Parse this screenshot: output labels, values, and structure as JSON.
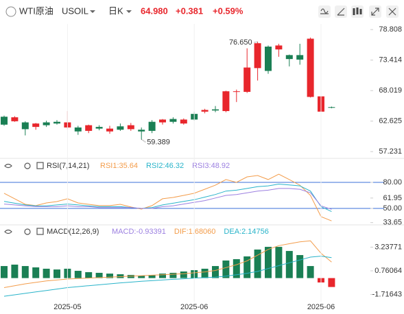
{
  "header": {
    "symbol": "WTI原油",
    "code": "USOIL",
    "period": "日K",
    "price": "64.980",
    "change": "+0.381",
    "change_pct": "+0.59%"
  },
  "chart_data": [
    {
      "type": "candlestick",
      "categories": [
        null,
        null,
        null,
        null,
        null,
        null,
        null,
        null,
        null,
        null,
        null,
        null,
        null,
        null,
        null,
        null,
        null,
        null,
        null,
        null,
        null,
        null,
        null,
        null,
        null,
        null,
        null,
        null,
        null,
        null,
        null,
        null
      ],
      "open": [
        63.4,
        62.6,
        62.4,
        61.6,
        62.4,
        62.5,
        61.5,
        61.5,
        60.9,
        61.6,
        60.8,
        61.7,
        61.2,
        61.1,
        62.5,
        62.4,
        63.0,
        62.2,
        63.9,
        64.3,
        64.7,
        64.4,
        67.8,
        67.8,
        72.0,
        75.8,
        75.3,
        74.3,
        74.3,
        66.9,
        64.3,
        65.1
      ],
      "high": [
        63.6,
        63.5,
        62.6,
        62.3,
        62.7,
        62.8,
        64.4,
        61.8,
        62.0,
        61.9,
        61.8,
        62.2,
        62.3,
        61.5,
        62.8,
        63.0,
        63.3,
        63.1,
        64.3,
        64.8,
        65.3,
        68.0,
        68.2,
        75.5,
        76.65,
        76.0,
        76.3,
        74.4,
        76.3,
        77.4,
        67.2,
        65.2
      ],
      "low": [
        61.8,
        62.5,
        60.1,
        61.1,
        61.6,
        62.0,
        61.2,
        60.2,
        60.5,
        61.0,
        60.4,
        60.9,
        60.9,
        59.389,
        60.5,
        62.0,
        62.2,
        62.0,
        62.7,
        64.0,
        64.2,
        64.2,
        66.0,
        67.6,
        69.8,
        71.0,
        74.0,
        72.3,
        72.6,
        66.8,
        63.5,
        64.9
      ],
      "close": [
        62.0,
        63.3,
        61.2,
        62.2,
        61.9,
        62.2,
        62.4,
        60.8,
        61.9,
        61.3,
        61.3,
        61.1,
        61.9,
        60.8,
        60.9,
        62.9,
        62.5,
        62.9,
        62.9,
        64.6,
        64.5,
        67.9,
        67.9,
        72.1,
        76.4,
        71.5,
        76.0,
        73.6,
        73.5,
        77.2,
        67.0,
        64.98
      ],
      "up_color": "#e8262c",
      "down_color": "#1a7f54",
      "ylim": [
        56.4,
        79.8
      ],
      "yticks": [
        78.808,
        73.414,
        68.019,
        62.625,
        57.231
      ],
      "annotations": [
        {
          "value": 76.65,
          "label": "76.650"
        },
        {
          "value": 59.389,
          "label": "59.389"
        }
      ]
    },
    {
      "type": "line",
      "title": "RSI(7,14,21)",
      "series": [
        {
          "name": "RSI1:35.64",
          "color": "#f39c4a",
          "values": [
            67.4,
            61.1,
            54.7,
            53.2,
            56.3,
            57.9,
            61.1,
            56.3,
            54.7,
            53.2,
            53.2,
            54.7,
            51.6,
            49.2,
            53.2,
            61.1,
            62.6,
            65.0,
            67.4,
            72.1,
            76.8,
            83.2,
            80.0,
            86.3,
            87.9,
            83.2,
            89.5,
            83.2,
            76.8,
            65.0,
            40.5,
            35.64
          ]
        },
        {
          "name": "RSI2:46.32",
          "color": "#27b3c9",
          "values": [
            58,
            56,
            54,
            53,
            53,
            54,
            55,
            54,
            53,
            52,
            52,
            52,
            51,
            50,
            51,
            54,
            56,
            58,
            60,
            63,
            66,
            70,
            71,
            73,
            75,
            76,
            78,
            77,
            76,
            70,
            52,
            46.32
          ]
        },
        {
          "name": "RSI3:48.92",
          "color": "#9b7fe0",
          "values": [
            55,
            54,
            53,
            52,
            52,
            52,
            53,
            52,
            52,
            51,
            51,
            51,
            51,
            50,
            50,
            52,
            53,
            55,
            57,
            59,
            62,
            65,
            66,
            68,
            70,
            71,
            73,
            73,
            72,
            68,
            53,
            48.92
          ]
        }
      ],
      "ylim": [
        32.6,
        103.7
      ],
      "yticks": [
        {
          "value": 80,
          "label": "80.00"
        },
        61.95,
        {
          "value": 50,
          "label": "50.00"
        },
        33.65
      ],
      "hlines": [
        80,
        50
      ],
      "hline_color": "#3a6fd8"
    },
    {
      "type": "macd",
      "title": "MACD(12,26,9)",
      "histogram": {
        "name": "MACD:-0.93391",
        "color": "#9b7fe0",
        "pos_color": "#1a7f54",
        "neg_color": "#e8262c",
        "values": [
          1.26,
          1.41,
          1.26,
          1.12,
          0.98,
          0.9,
          0.98,
          0.76,
          0.62,
          0.55,
          0.47,
          0.4,
          0.33,
          0.26,
          0.33,
          0.47,
          0.55,
          0.69,
          0.83,
          0.98,
          1.26,
          1.84,
          1.98,
          2.27,
          2.99,
          3.27,
          3.27,
          2.84,
          2.41,
          1.26,
          -0.46,
          -0.93391
        ]
      },
      "series": [
        {
          "name": "DIF:1.68060",
          "color": "#f39c4a",
          "values": [
            -1.0,
            -0.8,
            -0.6,
            -0.45,
            -0.3,
            -0.2,
            -0.1,
            -0.05,
            0.0,
            0.05,
            0.1,
            0.15,
            0.2,
            0.25,
            0.3,
            0.35,
            0.4,
            0.45,
            0.55,
            0.65,
            0.8,
            1.1,
            1.4,
            1.8,
            2.4,
            3.0,
            3.4,
            3.6,
            3.8,
            3.9,
            2.6,
            1.6806
          ]
        },
        {
          "name": "DEA:2.14756",
          "color": "#27b3c9",
          "values": [
            -1.9,
            -1.75,
            -1.6,
            -1.45,
            -1.3,
            -1.15,
            -1.0,
            -0.9,
            -0.8,
            -0.7,
            -0.6,
            -0.5,
            -0.42,
            -0.34,
            -0.27,
            -0.2,
            -0.13,
            -0.07,
            0.0,
            0.05,
            0.1,
            0.2,
            0.35,
            0.5,
            0.7,
            1.0,
            1.3,
            1.6,
            1.9,
            2.2,
            2.3,
            2.14756
          ]
        }
      ],
      "ylim": [
        -2.47,
        5.43
      ],
      "yticks": [
        3.23771,
        0.76064,
        -1.71643
      ],
      "xticks": [
        {
          "value": 6,
          "label": "2025-05"
        },
        {
          "value": 18,
          "label": "2025-06"
        },
        {
          "value": 30,
          "label": "2025-06"
        }
      ]
    }
  ]
}
